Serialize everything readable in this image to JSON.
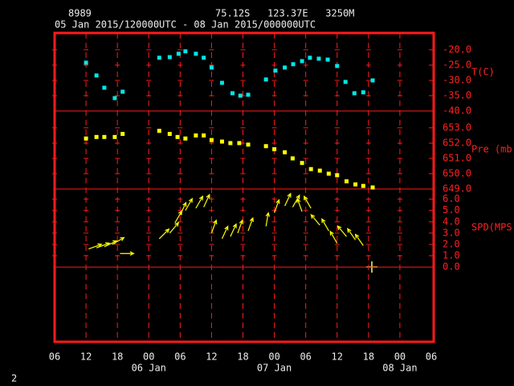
{
  "header": {
    "station": "8989",
    "location": "75.12S   123.37E   3250M",
    "period": "05 Jan 2015/120000UTC - 08 Jan 2015/000000UTC",
    "page_number": "2"
  },
  "chart_data": {
    "type": "meteogram",
    "xlim": [
      6,
      78
    ],
    "xticks": [
      {
        "value": 6,
        "label": "06"
      },
      {
        "value": 12,
        "label": "12"
      },
      {
        "value": 18,
        "label": "18"
      },
      {
        "value": 24,
        "label": "00"
      },
      {
        "value": 30,
        "label": "06"
      },
      {
        "value": 36,
        "label": "12"
      },
      {
        "value": 42,
        "label": "18"
      },
      {
        "value": 48,
        "label": "00"
      },
      {
        "value": 54,
        "label": "06"
      },
      {
        "value": 60,
        "label": "12"
      },
      {
        "value": 66,
        "label": "18"
      },
      {
        "value": 72,
        "label": "00"
      },
      {
        "value": 78,
        "label": "06"
      }
    ],
    "day_labels": [
      {
        "value": 24,
        "label": "06 Jan"
      },
      {
        "value": 48,
        "label": "07 Jan"
      },
      {
        "value": 72,
        "label": "08 Jan"
      }
    ],
    "grid": true,
    "panels": [
      {
        "type": "scatter",
        "name": "T(C)",
        "color": "#00e8e8",
        "ylim": [
          -40,
          -14.5
        ],
        "yticks": [
          {
            "value": -40,
            "label": "-40.0"
          },
          {
            "value": -35,
            "label": "-35.0"
          },
          {
            "value": -30,
            "label": "-30.0"
          },
          {
            "value": -25,
            "label": "-25.0"
          },
          {
            "value": -20,
            "label": "-20.0"
          }
        ],
        "x": [
          12,
          14,
          15.5,
          17.5,
          19,
          26,
          28,
          29.7,
          31,
          33,
          34.5,
          36,
          38,
          40,
          41.5,
          43,
          46.4,
          48.2,
          50,
          51.6,
          53.3,
          54.8,
          56.5,
          58.2,
          60,
          61.6,
          63.3,
          65,
          66.8
        ],
        "values": [
          -24.2,
          -28.4,
          -32.4,
          -35.8,
          -33.7,
          -22.6,
          -22.4,
          -21.3,
          -20.5,
          -21.3,
          -22.6,
          -25.8,
          -30.8,
          -34.2,
          -35,
          -34.7,
          -29.7,
          -26.8,
          -25.8,
          -24.7,
          -23.7,
          -22.6,
          -22.9,
          -23.2,
          -25.3,
          -30.5,
          -34.2,
          -33.9,
          -30
        ]
      },
      {
        "type": "scatter",
        "name": "Pre (mb)",
        "color": "#ffff00",
        "ylim": [
          649,
          654.1
        ],
        "yticks": [
          {
            "value": 649,
            "label": "649.0"
          },
          {
            "value": 650,
            "label": "650.0"
          },
          {
            "value": 651,
            "label": "651.0"
          },
          {
            "value": 652,
            "label": "652.0"
          },
          {
            "value": 653,
            "label": "653.0"
          }
        ],
        "x": [
          12,
          14,
          15.5,
          17.5,
          19,
          26,
          28,
          29.5,
          31,
          33,
          34.5,
          36,
          38,
          39.6,
          41.3,
          43,
          46.4,
          48,
          50,
          51.5,
          53.3,
          55,
          56.7,
          58.4,
          60,
          61.8,
          63.5,
          65,
          66.8
        ],
        "values": [
          652.3,
          652.4,
          652.4,
          652.4,
          652.6,
          652.8,
          652.6,
          652.4,
          652.3,
          652.5,
          652.5,
          652.2,
          652.1,
          652.0,
          652.0,
          651.9,
          651.8,
          651.6,
          651.4,
          651.0,
          650.7,
          650.3,
          650.2,
          650.0,
          649.9,
          649.5,
          649.3,
          649.2,
          649.1
        ]
      },
      {
        "type": "vector",
        "name": "SPD(MPS)",
        "color": "#ffff00",
        "ylim": [
          -6.6,
          6.9
        ],
        "yticks": [
          {
            "value": 0,
            "label": "0.0"
          },
          {
            "value": 1,
            "label": "1.0"
          },
          {
            "value": 2,
            "label": "2.0"
          },
          {
            "value": 3,
            "label": "3.0"
          },
          {
            "value": 4,
            "label": "4.0"
          },
          {
            "value": 5,
            "label": "5.0"
          },
          {
            "value": 6,
            "label": "6.0"
          }
        ],
        "x": [
          12.5,
          14,
          15.5,
          17,
          18.5,
          26,
          28,
          29,
          30,
          31,
          33,
          34.5,
          36,
          38,
          39.6,
          41,
          43,
          46.4,
          48,
          50,
          51.5,
          53.3,
          55,
          56.7,
          58.4,
          60,
          61.8,
          63.5,
          65
        ],
        "values": [
          1.6,
          1.7,
          1.8,
          2.0,
          1.2,
          2.5,
          3.0,
          3.9,
          4.6,
          5.0,
          5.2,
          5.3,
          3.0,
          2.5,
          2.7,
          3.0,
          3.2,
          3.6,
          4.8,
          5.4,
          5.3,
          4.9,
          5.2,
          3.7,
          3.2,
          2.1,
          2.7,
          2.4,
          1.9
        ],
        "directions": [
          70,
          70,
          65,
          60,
          90,
          45,
          40,
          30,
          25,
          30,
          30,
          25,
          20,
          25,
          25,
          20,
          20,
          10,
          20,
          25,
          30,
          340,
          330,
          320,
          330,
          330,
          320,
          325,
          325
        ]
      }
    ]
  }
}
